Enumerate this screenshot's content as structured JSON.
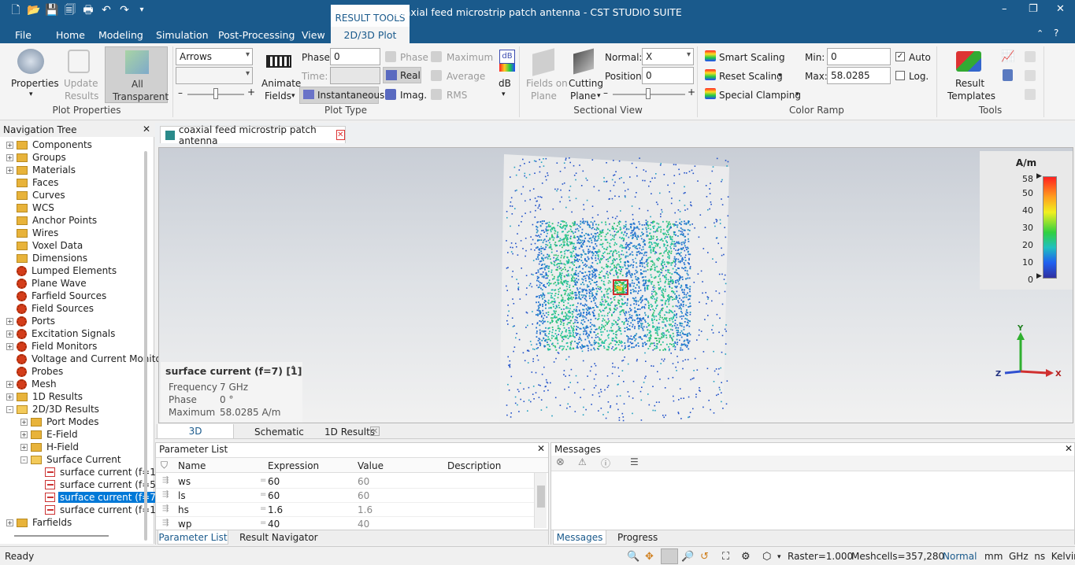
{
  "window": {
    "title": "coaxial feed microstrip patch antenna - CST STUDIO SUITE",
    "context_tab_group": "RESULT TOOLS",
    "controls": {
      "minimize": "–",
      "restore": "❐",
      "close": "✕"
    }
  },
  "menu": {
    "tabs": [
      "File",
      "Home",
      "Modeling",
      "Simulation",
      "Post-Processing",
      "View",
      "2D/3D Plot"
    ],
    "active_tab": "2D/3D Plot"
  },
  "ribbon": {
    "plot_properties": {
      "label": "Plot Properties",
      "properties": "Properties",
      "update_results_1": "Update",
      "update_results_2": "Results",
      "all_transparent_1": "All",
      "all_transparent_2": "Transparent"
    },
    "plot_type": {
      "label": "Plot Type",
      "arrows_combo": "Arrows",
      "animate_1": "Animate",
      "animate_2": "Fields",
      "phase_label": "Phase:",
      "phase_value": "0",
      "time_label": "Time:",
      "instantaneous": "Instantaneous",
      "phase_btn": "Phase",
      "real_btn": "Real",
      "imag_btn": "Imag.",
      "maximum_btn": "Maximum",
      "average_btn": "Average",
      "rms_btn": "RMS",
      "db_btn": "dB",
      "db_icon": "dB"
    },
    "sectional_view": {
      "label": "Sectional View",
      "fields_on_plane_1": "Fields on",
      "fields_on_plane_2": "Plane",
      "cutting_plane_1": "Cutting",
      "cutting_plane_2": "Plane",
      "normal_label": "Normal:",
      "normal_value": "X",
      "position_label": "Position:",
      "position_value": "0"
    },
    "color_ramp": {
      "label": "Color Ramp",
      "smart_scaling": "Smart Scaling",
      "reset_scaling": "Reset Scaling",
      "special_clamping": "Special Clamping",
      "min_label": "Min:",
      "min_value": "0",
      "max_label": "Max:",
      "max_value": "58.0285",
      "auto_label": "Auto",
      "auto_checked": true,
      "log_label": "Log.",
      "log_checked": false
    },
    "tools": {
      "label": "Tools",
      "result_templates_1": "Result",
      "result_templates_2": "Templates"
    }
  },
  "navigation_tree": {
    "title": "Navigation Tree",
    "items": [
      {
        "label": "Components",
        "icon": "folder",
        "level": 0,
        "expander": "+"
      },
      {
        "label": "Groups",
        "icon": "folder",
        "level": 0,
        "expander": "+"
      },
      {
        "label": "Materials",
        "icon": "folder",
        "level": 0,
        "expander": "+"
      },
      {
        "label": "Faces",
        "icon": "folder",
        "level": 0,
        "expander": ""
      },
      {
        "label": "Curves",
        "icon": "folder",
        "level": 0,
        "expander": ""
      },
      {
        "label": "WCS",
        "icon": "folder",
        "level": 0,
        "expander": ""
      },
      {
        "label": "Anchor Points",
        "icon": "folder",
        "level": 0,
        "expander": ""
      },
      {
        "label": "Wires",
        "icon": "folder",
        "level": 0,
        "expander": ""
      },
      {
        "label": "Voxel Data",
        "icon": "folder",
        "level": 0,
        "expander": ""
      },
      {
        "label": "Dimensions",
        "icon": "folder",
        "level": 0,
        "expander": ""
      },
      {
        "label": "Lumped Elements",
        "icon": "gear",
        "level": 0,
        "expander": ""
      },
      {
        "label": "Plane Wave",
        "icon": "gear",
        "level": 0,
        "expander": ""
      },
      {
        "label": "Farfield Sources",
        "icon": "gear",
        "level": 0,
        "expander": ""
      },
      {
        "label": "Field Sources",
        "icon": "gear",
        "level": 0,
        "expander": ""
      },
      {
        "label": "Ports",
        "icon": "gear",
        "level": 0,
        "expander": "+"
      },
      {
        "label": "Excitation Signals",
        "icon": "gear",
        "level": 0,
        "expander": "+"
      },
      {
        "label": "Field Monitors",
        "icon": "gear",
        "level": 0,
        "expander": "+"
      },
      {
        "label": "Voltage and Current Monitors",
        "icon": "gear",
        "level": 0,
        "expander": ""
      },
      {
        "label": "Probes",
        "icon": "gear",
        "level": 0,
        "expander": ""
      },
      {
        "label": "Mesh",
        "icon": "gear",
        "level": 0,
        "expander": "+"
      },
      {
        "label": "1D Results",
        "icon": "folder",
        "level": 0,
        "expander": "+"
      },
      {
        "label": "2D/3D Results",
        "icon": "folder-open",
        "level": 0,
        "expander": "–"
      },
      {
        "label": "Port Modes",
        "icon": "folder",
        "level": 1,
        "expander": "+"
      },
      {
        "label": "E-Field",
        "icon": "folder",
        "level": 1,
        "expander": "+"
      },
      {
        "label": "H-Field",
        "icon": "folder",
        "level": 1,
        "expander": "+"
      },
      {
        "label": "Surface Current",
        "icon": "folder-open",
        "level": 1,
        "expander": "–"
      },
      {
        "label": "surface current (f=1",
        "icon": "current",
        "level": 2,
        "expander": ""
      },
      {
        "label": "surface current (f=5",
        "icon": "current",
        "level": 2,
        "expander": ""
      },
      {
        "label": "surface current (f=7",
        "icon": "current",
        "level": 2,
        "expander": "",
        "selected": true
      },
      {
        "label": "surface current (f=1",
        "icon": "current",
        "level": 2,
        "expander": ""
      },
      {
        "label": "Farfields",
        "icon": "folder",
        "level": 0,
        "expander": "+"
      }
    ]
  },
  "document": {
    "tab_title": "coaxial feed microstrip patch antenna",
    "legend": {
      "unit": "A/m",
      "ticks": [
        "58",
        "50",
        "40",
        "30",
        "20",
        "10",
        "0"
      ]
    },
    "info": {
      "title": "surface current (f=7) [1]",
      "rows": [
        {
          "key": "Frequency",
          "value": "7 GHz"
        },
        {
          "key": "Phase",
          "value": "0 °"
        },
        {
          "key": "Maximum",
          "value": "58.0285 A/m"
        }
      ]
    },
    "axes": {
      "y": "Y",
      "z": "Z",
      "x": "X"
    },
    "view_tabs": [
      "3D",
      "Schematic",
      "1D Results"
    ]
  },
  "parameter_list": {
    "title": "Parameter List",
    "columns": [
      "Name",
      "Expression",
      "Value",
      "Description"
    ],
    "rows": [
      {
        "name": "ws",
        "expression": "60",
        "value": "60",
        "description": ""
      },
      {
        "name": "ls",
        "expression": "60",
        "value": "60",
        "description": ""
      },
      {
        "name": "hs",
        "expression": "1.6",
        "value": "1.6",
        "description": ""
      },
      {
        "name": "wp",
        "expression": "40",
        "value": "40",
        "description": ""
      }
    ],
    "tabs": [
      "Parameter List",
      "Result Navigator"
    ]
  },
  "messages": {
    "title": "Messages",
    "tabs": [
      "Messages",
      "Progress"
    ]
  },
  "statusbar": {
    "ready": "Ready",
    "raster": "Raster=1.000",
    "meshcells": "Meshcells=357,280",
    "mode": "Normal",
    "units": "mm  GHz  ns  Kelvin"
  },
  "colors": {
    "titlebar": "#1a5a8c",
    "selection": "#0078d7",
    "ramp": [
      "#ff2020",
      "#ffa020",
      "#f0f020",
      "#30d040",
      "#20c0c0",
      "#2060f0",
      "#3030a0"
    ]
  }
}
